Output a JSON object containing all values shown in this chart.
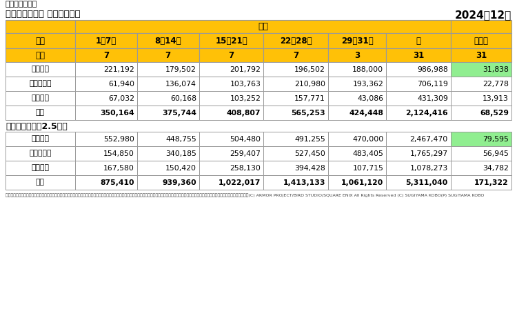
{
  "title_tool": "朝の便利ツール",
  "title_main": "おさかなコイン 週ごとの合計",
  "title_date": "2024年12月",
  "header_hassei": "発生",
  "header_row1": [
    "期間",
    "1～7日",
    "8～14日",
    "15～21日",
    "22～28日",
    "29～31日",
    "計",
    "月平均"
  ],
  "header_row2": [
    "回数",
    "7",
    "7",
    "7",
    "7",
    "3",
    "31",
    "31"
  ],
  "table1_rows": [
    [
      "すごっく",
      "221,192",
      "179,502",
      "201,792",
      "196,502",
      "188,000",
      "986,988",
      "31,838"
    ],
    [
      "サクランボ",
      "61,940",
      "136,074",
      "103,763",
      "210,980",
      "193,362",
      "706,119",
      "22,778"
    ],
    [
      "リリウム",
      "67,032",
      "60,168",
      "103,252",
      "157,771",
      "43,086",
      "431,309",
      "13,913"
    ],
    [
      "合計",
      "350,164",
      "375,744",
      "408,807",
      "565,253",
      "424,448",
      "2,124,416",
      "68,529"
    ]
  ],
  "table2_label": "ゴールド換算（2.5倍）",
  "table2_rows": [
    [
      "すごっく",
      "552,980",
      "448,755",
      "504,480",
      "491,255",
      "470,000",
      "2,467,470",
      "79,595"
    ],
    [
      "サクランボ",
      "154,850",
      "340,185",
      "259,407",
      "527,450",
      "483,405",
      "1,765,297",
      "56,945"
    ],
    [
      "リリウム",
      "167,580",
      "150,420",
      "258,130",
      "394,428",
      "107,715",
      "1,078,273",
      "34,782"
    ],
    [
      "合計",
      "875,410",
      "939,360",
      "1,022,017",
      "1,413,133",
      "1,061,120",
      "5,311,040",
      "171,322"
    ]
  ],
  "footer": "この表格で利用している株式会社スクウェア・エニックスを代表とする商標権者および著作権者が保持または著作物には株式会社スクウェア三菱等製会社が株持体共有する合盾の本意・登用は差といたします。(C) ARMOR PROJECT/BIRD STUDIO/SQUARE ENIX All Rights Reserved (C) SUGIYAMA KOBO(P) SUGIYAMA KOBO",
  "yellow": "#FFC107",
  "green_highlight": "#90EE90",
  "white": "#ffffff",
  "border_color": "#999999",
  "bg_color": "#ffffff"
}
